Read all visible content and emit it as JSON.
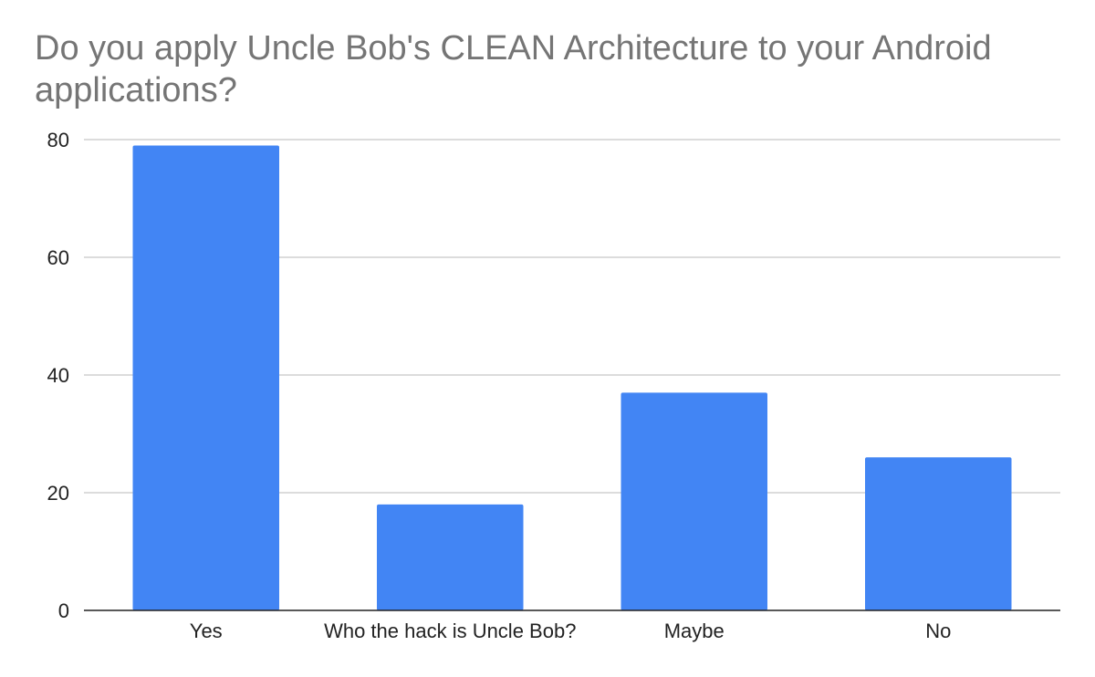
{
  "chart_data": {
    "type": "bar",
    "title": "Do you apply Uncle Bob's CLEAN Architecture to your Android applications?",
    "categories": [
      "Yes",
      "Who the hack is Uncle Bob?",
      "Maybe",
      "No"
    ],
    "values": [
      79,
      18,
      37,
      26
    ],
    "ylim": [
      0,
      80
    ],
    "yticks": [
      0,
      20,
      40,
      60,
      80
    ],
    "grid": true,
    "legend": "none",
    "bar_color": "#4285f4",
    "grid_color": "#c8c8c8",
    "axis_color": "#222222",
    "title_color": "#757575"
  }
}
